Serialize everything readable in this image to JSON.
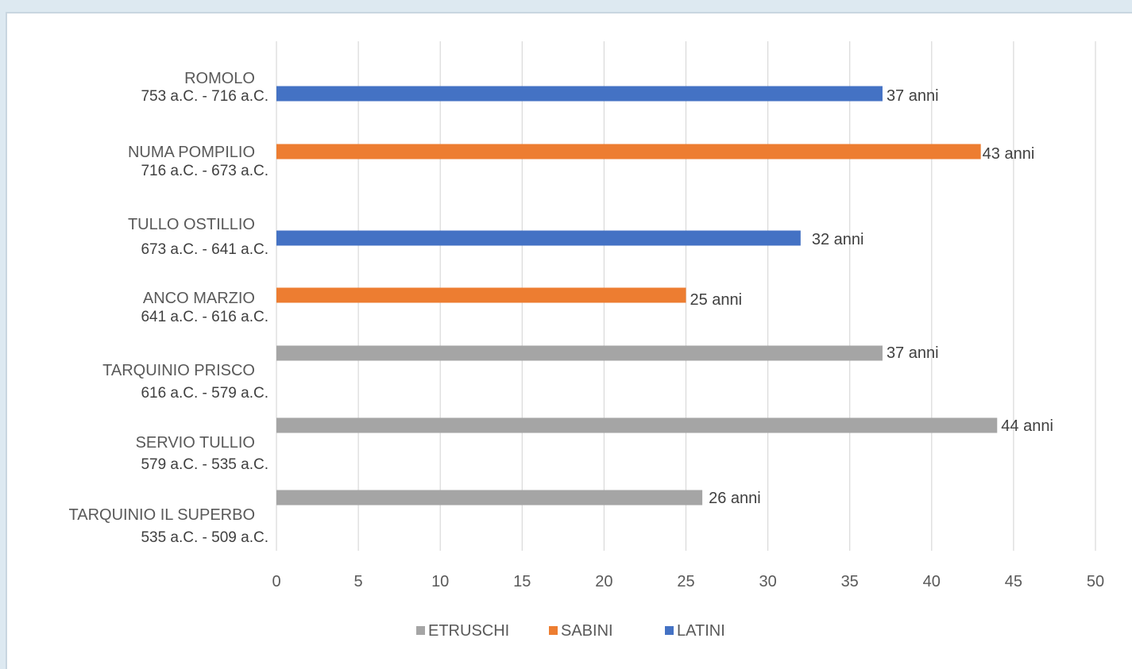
{
  "chart_data": {
    "type": "bar",
    "orientation": "horizontal",
    "categories": [
      {
        "name": "ROMOLO",
        "years": "753 a.C. - 716 a.C."
      },
      {
        "name": "NUMA POMPILIO",
        "years": "716 a.C. - 673 a.C."
      },
      {
        "name": "TULLO OSTILLIO",
        "years": "673 a.C. - 641 a.C."
      },
      {
        "name": "ANCO MARZIO",
        "years": "641 a.C. - 616 a.C."
      },
      {
        "name": "TARQUINIO PRISCO",
        "years": "616 a.C. - 579 a.C."
      },
      {
        "name": "SERVIO TULLIO",
        "years": "579 a.C. - 535 a.C."
      },
      {
        "name": "TARQUINIO IL SUPERBO",
        "years": "535 a.C. - 509 a.C."
      }
    ],
    "series": [
      {
        "name": "ETRUSCHI",
        "color": "#a5a5a5",
        "values": [
          null,
          null,
          null,
          null,
          37,
          44,
          26
        ]
      },
      {
        "name": "SABINI",
        "color": "#ed7d31",
        "values": [
          null,
          43,
          null,
          25,
          null,
          null,
          null
        ]
      },
      {
        "name": "LATINI",
        "color": "#4472c4",
        "values": [
          37,
          null,
          32,
          null,
          null,
          null,
          null
        ]
      }
    ],
    "data_labels": [
      "37 anni",
      "43 anni",
      "32 anni",
      "25 anni",
      "37 anni",
      "44 anni",
      "26 anni"
    ],
    "xlim": [
      0,
      50
    ],
    "xticks": [
      "0",
      "5",
      "10",
      "15",
      "20",
      "25",
      "30",
      "35",
      "40",
      "45",
      "50"
    ],
    "grid": true,
    "legend_position": "bottom"
  }
}
